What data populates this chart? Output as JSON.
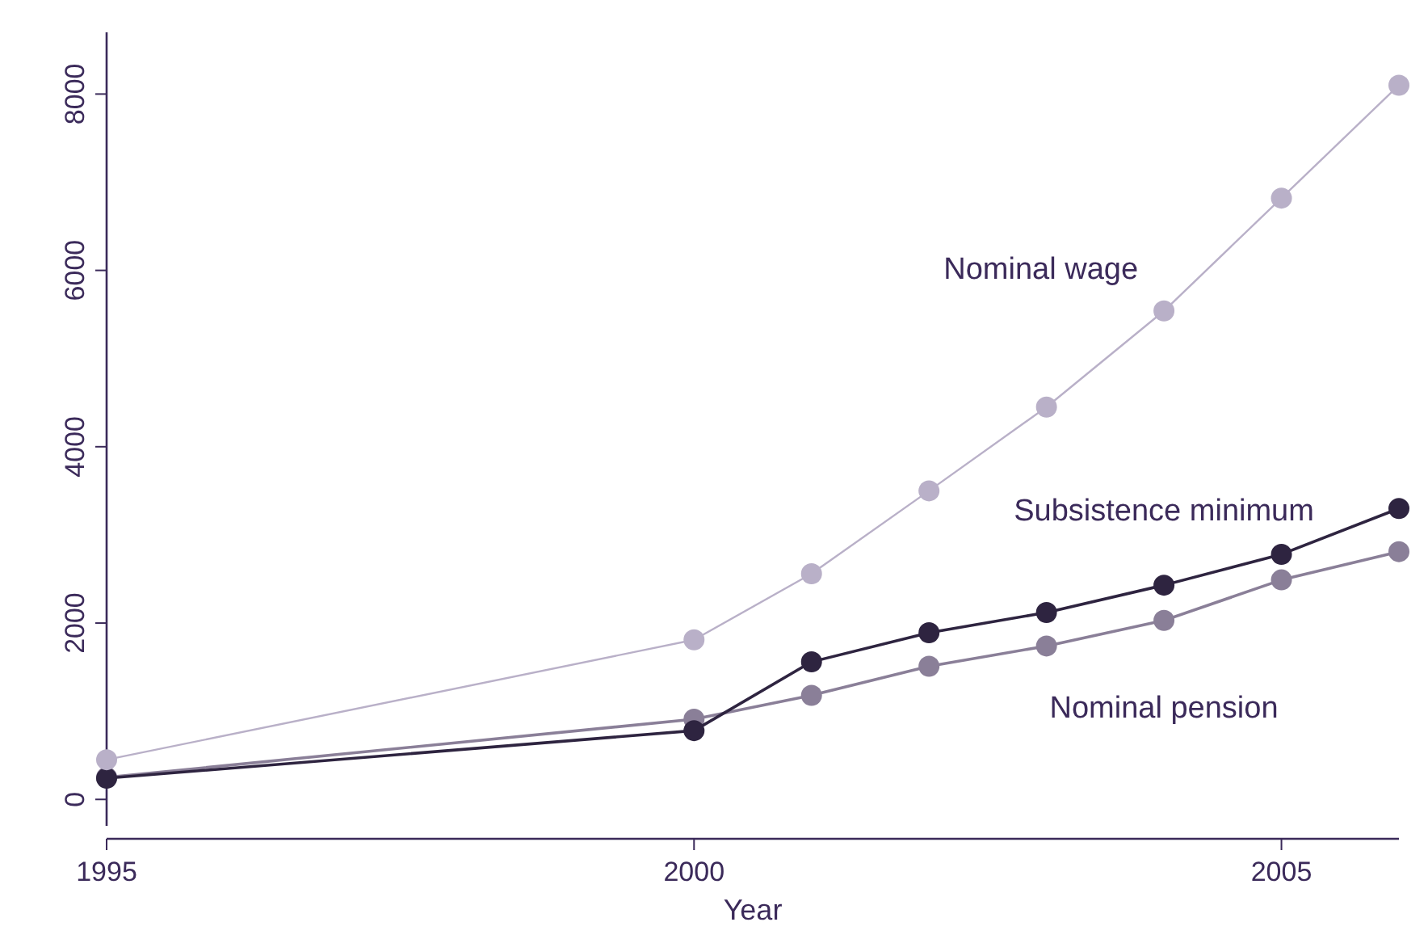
{
  "chart_data": {
    "type": "line",
    "xlabel": "Year",
    "x": [
      1995,
      2000,
      2001,
      2002,
      2003,
      2004,
      2005,
      2006
    ],
    "xlim": [
      1995,
      2006
    ],
    "xticks": [
      1995,
      2000,
      2005
    ],
    "ylim": [
      -300,
      8700
    ],
    "yticks": [
      0,
      2000,
      4000,
      6000,
      8000
    ],
    "marker": "circle",
    "line_style": "solid",
    "grid": false,
    "legend": false,
    "series": [
      {
        "name": "Nominal wage",
        "color": "#b9b0c8",
        "values": [
          450,
          1810,
          2560,
          3500,
          4450,
          5540,
          6820,
          8100
        ]
      },
      {
        "name": "Subsistence minimum",
        "color": "#2e2440",
        "values": [
          240,
          780,
          1560,
          1890,
          2120,
          2430,
          2780,
          3300
        ]
      },
      {
        "name": "Nominal pension",
        "color": "#8a7f98",
        "values": [
          250,
          910,
          1180,
          1510,
          1740,
          2030,
          2490,
          2810
        ]
      }
    ]
  }
}
